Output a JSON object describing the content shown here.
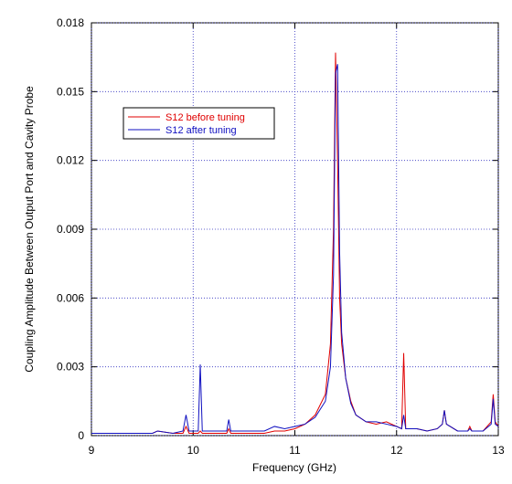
{
  "chart_data": {
    "type": "line",
    "x_label": "Frequency (GHz)",
    "y_label": "Coupling Amplitude Between Output Port and Cavity Probe",
    "x": [
      9,
      9.2,
      9.4,
      9.6,
      9.65,
      9.8,
      9.9,
      9.93,
      9.96,
      10.0,
      10.05,
      10.07,
      10.09,
      10.2,
      10.33,
      10.35,
      10.37,
      10.5,
      10.7,
      10.8,
      10.9,
      11.0,
      11.1,
      11.2,
      11.3,
      11.35,
      11.38,
      11.4,
      11.42,
      11.44,
      11.46,
      11.5,
      11.55,
      11.6,
      11.7,
      11.8,
      11.9,
      12.0,
      12.05,
      12.07,
      12.09,
      12.2,
      12.3,
      12.4,
      12.45,
      12.47,
      12.49,
      12.6,
      12.7,
      12.72,
      12.74,
      12.85,
      12.93,
      12.95,
      12.97,
      13.0
    ],
    "series": [
      {
        "name": "S12 before tuning",
        "color": "#e00000",
        "values": [
          0.0001,
          0.0001,
          0.0001,
          0.0001,
          0.0002,
          0.0001,
          0.0001,
          0.0004,
          0.0001,
          0.0001,
          0.0001,
          0.0002,
          0.0001,
          0.0001,
          0.0001,
          0.0003,
          0.0001,
          0.0001,
          0.0001,
          0.0002,
          0.0002,
          0.0003,
          0.0005,
          0.0009,
          0.0018,
          0.004,
          0.009,
          0.0167,
          0.012,
          0.006,
          0.004,
          0.0025,
          0.0015,
          0.0009,
          0.0006,
          0.0005,
          0.0006,
          0.0004,
          0.0003,
          0.0036,
          0.0003,
          0.0003,
          0.0002,
          0.0003,
          0.0005,
          0.0011,
          0.0005,
          0.0002,
          0.0002,
          0.0004,
          0.0002,
          0.0002,
          0.0006,
          0.0018,
          0.0006,
          0.0004
        ]
      },
      {
        "name": "S12 after tuning",
        "color": "#1010c0",
        "values": [
          0.0001,
          0.0001,
          0.0001,
          0.0001,
          0.0002,
          0.0001,
          0.0002,
          0.0009,
          0.0002,
          0.0002,
          0.0002,
          0.0031,
          0.0002,
          0.0002,
          0.0002,
          0.0007,
          0.0002,
          0.0002,
          0.0002,
          0.0004,
          0.0003,
          0.0004,
          0.0005,
          0.0008,
          0.0015,
          0.003,
          0.007,
          0.0158,
          0.0162,
          0.008,
          0.0045,
          0.0025,
          0.0014,
          0.0009,
          0.0006,
          0.0006,
          0.0005,
          0.0004,
          0.0003,
          0.0009,
          0.0003,
          0.0003,
          0.0002,
          0.0003,
          0.0005,
          0.0011,
          0.0005,
          0.0002,
          0.0002,
          0.0003,
          0.0002,
          0.0002,
          0.0005,
          0.0016,
          0.0005,
          0.0004
        ]
      }
    ],
    "xlim": [
      9,
      13
    ],
    "ylim": [
      0,
      0.018
    ],
    "xticks": [
      9,
      10,
      11,
      12,
      13
    ],
    "yticks": [
      0,
      0.003,
      0.006,
      0.009,
      0.012,
      0.015,
      0.018
    ],
    "grid": true,
    "legend": "upper left"
  }
}
